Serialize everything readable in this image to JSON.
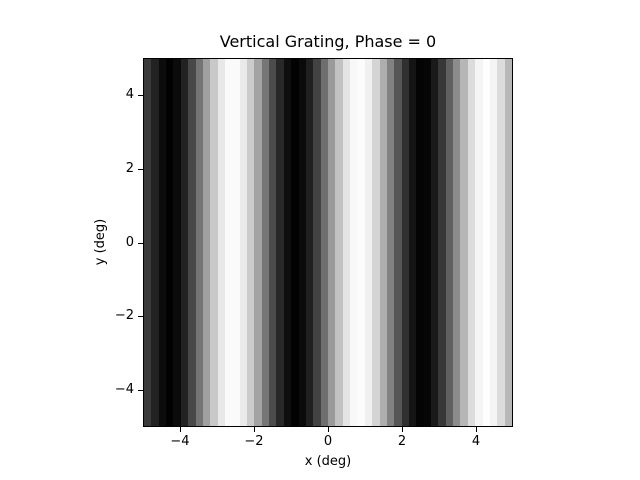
{
  "chart_data": {
    "type": "heatmap",
    "title": "Vertical Grating, Phase = 0",
    "xlabel": "x (deg)",
    "ylabel": "y (deg)",
    "xlim": [
      -5,
      5
    ],
    "ylim": [
      -5,
      5
    ],
    "colormap": "gray",
    "grid": false,
    "x_ticks": [
      -4,
      -2,
      0,
      2,
      4
    ],
    "x_tick_labels": [
      "−4",
      "−2",
      "0",
      "2",
      "4"
    ],
    "y_ticks": [
      4,
      2,
      0,
      -2,
      -4
    ],
    "y_tick_labels": [
      "4",
      "2",
      "0",
      "−2",
      "−4"
    ],
    "columns": 50,
    "column_width_deg": 0.2,
    "column_gray_values": [
      58,
      34,
      12,
      2,
      11,
      34,
      72,
      116,
      160,
      200,
      232,
      250,
      250,
      234,
      203,
      163,
      118,
      76,
      40,
      14,
      2,
      10,
      32,
      66,
      110,
      154,
      194,
      228,
      248,
      252,
      240,
      212,
      174,
      130,
      86,
      48,
      20,
      4,
      6,
      26,
      56,
      96,
      140,
      182,
      220,
      244,
      254,
      244,
      220,
      184
    ],
    "description": "Vertical sinusoidal grating constant along y; approx period 3.4 deg"
  }
}
